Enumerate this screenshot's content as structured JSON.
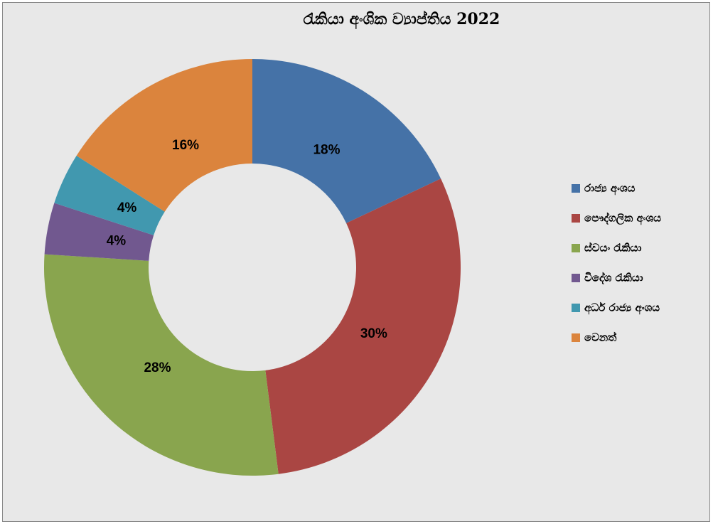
{
  "chart_data": {
    "type": "donut",
    "title": "රැකියා අංශික ව්‍යාප්තිය 2022",
    "categories": [
      "රාජ්‍ය අංශය",
      "පෞද්ගලික අංශය",
      "ස්වයං රැකියා",
      "විදේශ රැකියා",
      "අර්ධ රාජ්‍ය අංශය",
      "වෙනත්"
    ],
    "values": [
      18,
      30,
      28,
      4,
      4,
      16
    ],
    "value_labels": [
      "18%",
      "30%",
      "28%",
      "4%",
      "4%",
      "16%"
    ],
    "colors": [
      "#4572a7",
      "#aa4643",
      "#89a54e",
      "#71588f",
      "#4198af",
      "#db843d"
    ],
    "legend": "right"
  }
}
